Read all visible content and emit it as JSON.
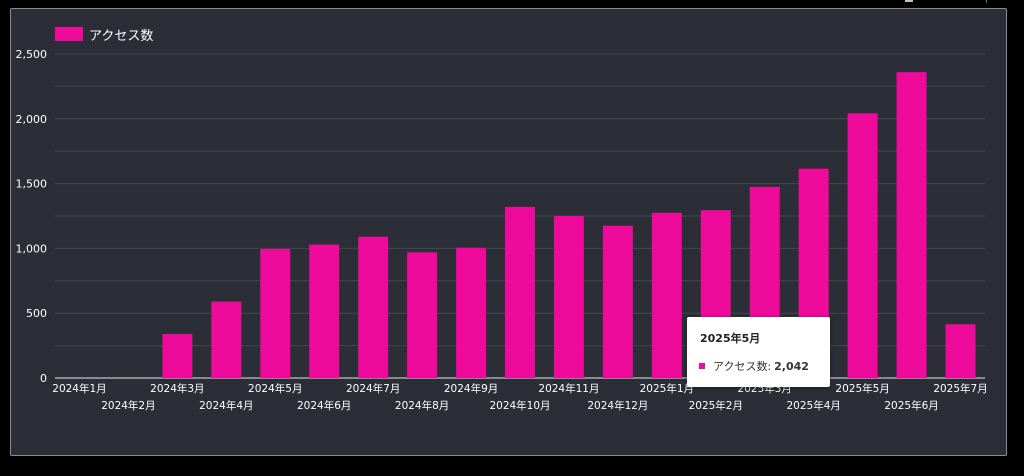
{
  "colors": {
    "bar": "#ee0a9a",
    "text": "#ffffff",
    "grid": "#43464f",
    "background": "#2c2e37"
  },
  "chart_data": {
    "type": "bar",
    "legend": "アクセス数",
    "legend_position": "top-left",
    "grid": true,
    "ylim": [
      0,
      2500
    ],
    "yticks": [
      "0",
      "500",
      "1,000",
      "1,500",
      "2,000",
      "2,500"
    ],
    "categories": [
      "2024年1月",
      "2024年2月",
      "2024年3月",
      "2024年4月",
      "2024年5月",
      "2024年6月",
      "2024年7月",
      "2024年8月",
      "2024年9月",
      "2024年10月",
      "2024年11月",
      "2024年12月",
      "2025年1月",
      "2025年2月",
      "2025年3月",
      "2025年4月",
      "2025年5月",
      "2025年6月",
      "2025年7月"
    ],
    "series": [
      {
        "name": "アクセス数",
        "values": [
          0,
          0,
          340,
          590,
          995,
          1030,
          1090,
          970,
          1005,
          1320,
          1250,
          1175,
          1275,
          1295,
          1475,
          1615,
          2042,
          2360,
          415
        ]
      }
    ]
  },
  "tooltip": {
    "title": "2025年5月",
    "label": "アクセス数:",
    "value": "2,042"
  }
}
